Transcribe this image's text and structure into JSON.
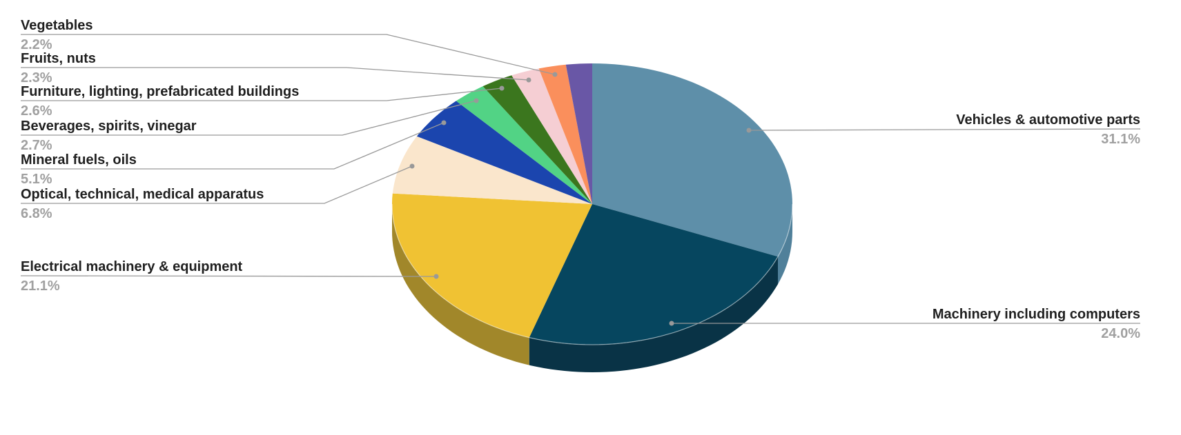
{
  "chart_data": {
    "type": "pie",
    "style": "3d",
    "title": "",
    "legend": "none",
    "unit": "%",
    "background_color": "#ffffff",
    "callout_text_color": "#1f1f1f",
    "callout_value_color": "#a0a0a0",
    "leader_line_color": "#999999",
    "slices": [
      {
        "label": "Vehicles & automotive parts",
        "value": 31.1,
        "display": "31.1%",
        "color": "#5e8fa9",
        "side_color": "#50809a"
      },
      {
        "label": "Machinery including computers",
        "value": 24.0,
        "display": "24.0%",
        "color": "#06465f",
        "side_color": "#093346"
      },
      {
        "label": "Electrical machinery & equipment",
        "value": 21.1,
        "display": "21.1%",
        "color": "#f0c233",
        "side_color": "#a1872a"
      },
      {
        "label": "Optical, technical, medical apparatus",
        "value": 6.8,
        "display": "6.8%",
        "color": "#fae6cc",
        "side_color": "#c4ad92"
      },
      {
        "label": "Mineral fuels, oils",
        "value": 5.1,
        "display": "5.1%",
        "color": "#1b45ae",
        "side_color": "#163a85"
      },
      {
        "label": "Beverages, spirits, vinegar",
        "value": 2.7,
        "display": "2.7%",
        "color": "#52d385",
        "side_color": "#3ba361"
      },
      {
        "label": "Furniture, lighting, prefabricated buildings",
        "value": 2.6,
        "display": "2.6%",
        "color": "#3b761e",
        "side_color": "#2b5715"
      },
      {
        "label": "Fruits, nuts",
        "value": 2.3,
        "display": "2.3%",
        "color": "#f5ced3",
        "side_color": "#c19fa5"
      },
      {
        "label": "Vegetables",
        "value": 2.2,
        "display": "2.2%",
        "color": "#fa8f5c",
        "side_color": "#c66f41"
      },
      {
        "label": "",
        "value": 2.1,
        "display": "",
        "color": "#6957a6",
        "side_color": "#524080"
      }
    ]
  }
}
